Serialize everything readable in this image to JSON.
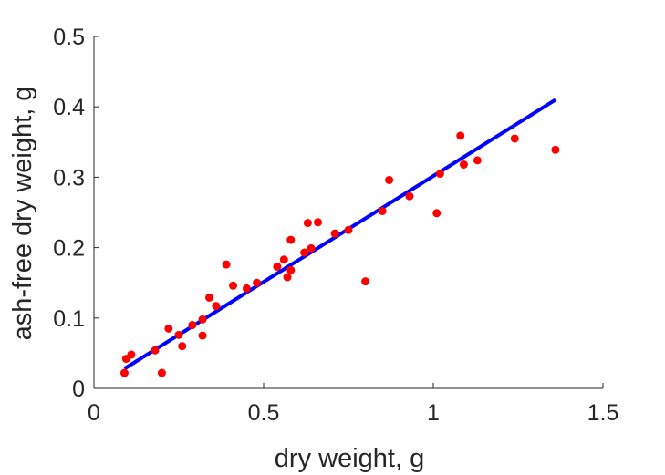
{
  "chart_data": {
    "type": "scatter",
    "xlabel": "dry weight, g",
    "ylabel": "ash-free dry weight, g",
    "xlim": [
      0,
      1.5
    ],
    "ylim": [
      0,
      0.5
    ],
    "x_ticks": [
      0,
      0.5,
      1,
      1.5
    ],
    "x_tick_labels": [
      "0",
      "0.5",
      "1",
      "1.5"
    ],
    "y_ticks": [
      0,
      0.1,
      0.2,
      0.3,
      0.4,
      0.5
    ],
    "y_tick_labels": [
      "0",
      "0.1",
      "0.2",
      "0.3",
      "0.4",
      "0.5"
    ],
    "grid": false,
    "marker_color": "#ff0000",
    "line_color": "#0000ff",
    "points": [
      [
        0.09,
        0.022
      ],
      [
        0.095,
        0.042
      ],
      [
        0.11,
        0.048
      ],
      [
        0.18,
        0.054
      ],
      [
        0.2,
        0.022
      ],
      [
        0.22,
        0.085
      ],
      [
        0.25,
        0.076
      ],
      [
        0.26,
        0.06
      ],
      [
        0.29,
        0.09
      ],
      [
        0.32,
        0.075
      ],
      [
        0.32,
        0.098
      ],
      [
        0.34,
        0.129
      ],
      [
        0.36,
        0.117
      ],
      [
        0.39,
        0.176
      ],
      [
        0.41,
        0.146
      ],
      [
        0.45,
        0.142
      ],
      [
        0.48,
        0.15
      ],
      [
        0.54,
        0.173
      ],
      [
        0.56,
        0.183
      ],
      [
        0.57,
        0.158
      ],
      [
        0.58,
        0.168
      ],
      [
        0.58,
        0.211
      ],
      [
        0.62,
        0.193
      ],
      [
        0.63,
        0.235
      ],
      [
        0.64,
        0.199
      ],
      [
        0.66,
        0.236
      ],
      [
        0.71,
        0.22
      ],
      [
        0.75,
        0.225
      ],
      [
        0.8,
        0.152
      ],
      [
        0.85,
        0.252
      ],
      [
        0.87,
        0.296
      ],
      [
        0.93,
        0.273
      ],
      [
        1.01,
        0.249
      ],
      [
        1.02,
        0.305
      ],
      [
        1.08,
        0.359
      ],
      [
        1.09,
        0.318
      ],
      [
        1.13,
        0.324
      ],
      [
        1.24,
        0.355
      ],
      [
        1.36,
        0.339
      ]
    ],
    "fit_line": {
      "x": [
        0.09,
        1.36
      ],
      "y": [
        0.028,
        0.41
      ]
    }
  }
}
